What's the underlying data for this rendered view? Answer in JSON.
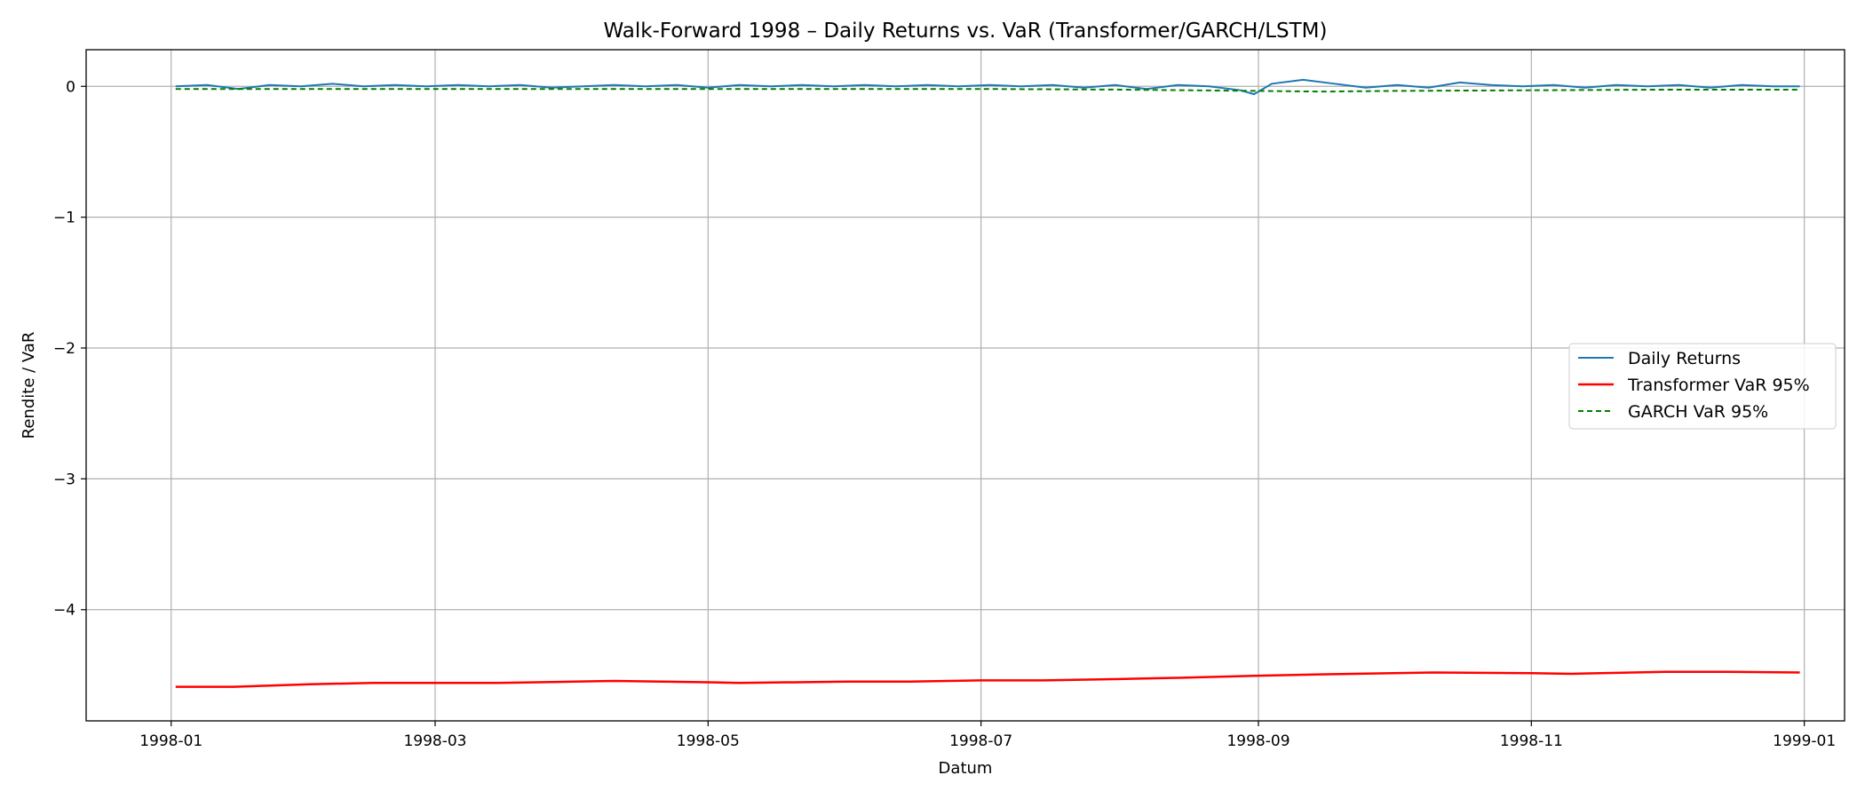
{
  "chart_data": {
    "type": "line",
    "title": "Walk-Forward 1998 – Daily Returns vs. VaR (Transformer/GARCH/LSTM)",
    "xlabel": "Datum",
    "ylabel": "Rendite / VaR",
    "x_ticks": [
      "1998-01",
      "1998-03",
      "1998-05",
      "1998-07",
      "1998-09",
      "1998-11",
      "1999-01"
    ],
    "y_ticks": [
      0,
      -1,
      -2,
      -3,
      -4
    ],
    "y_tick_labels": [
      "0",
      "−1",
      "−2",
      "−3",
      "−4"
    ],
    "xlim": [
      "1997-12-13",
      "1999-01-10"
    ],
    "ylim": [
      -4.85,
      0.28
    ],
    "grid": true,
    "legend": "center-right",
    "series": [
      {
        "name": "Daily Returns",
        "color": "#1f77b4",
        "style": "solid",
        "x": [
          "1998-01-02",
          "1998-01-09",
          "1998-01-16",
          "1998-01-23",
          "1998-01-30",
          "1998-02-06",
          "1998-02-13",
          "1998-02-20",
          "1998-02-27",
          "1998-03-06",
          "1998-03-13",
          "1998-03-20",
          "1998-03-27",
          "1998-04-03",
          "1998-04-10",
          "1998-04-17",
          "1998-04-24",
          "1998-05-01",
          "1998-05-08",
          "1998-05-15",
          "1998-05-22",
          "1998-05-29",
          "1998-06-05",
          "1998-06-12",
          "1998-06-19",
          "1998-06-26",
          "1998-07-03",
          "1998-07-10",
          "1998-07-17",
          "1998-07-24",
          "1998-07-31",
          "1998-08-07",
          "1998-08-14",
          "1998-08-21",
          "1998-08-28",
          "1998-08-31",
          "1998-09-04",
          "1998-09-11",
          "1998-09-18",
          "1998-09-25",
          "1998-10-02",
          "1998-10-09",
          "1998-10-16",
          "1998-10-23",
          "1998-10-30",
          "1998-11-06",
          "1998-11-13",
          "1998-11-20",
          "1998-11-27",
          "1998-12-04",
          "1998-12-11",
          "1998-12-18",
          "1998-12-25",
          "1998-12-31"
        ],
        "values": [
          0.0,
          0.01,
          -0.02,
          0.01,
          0.0,
          0.02,
          0.0,
          0.01,
          0.0,
          0.01,
          0.0,
          0.01,
          -0.01,
          0.0,
          0.01,
          0.0,
          0.01,
          -0.01,
          0.01,
          0.0,
          0.01,
          0.0,
          0.01,
          0.0,
          0.01,
          0.0,
          0.01,
          0.0,
          0.01,
          -0.01,
          0.01,
          -0.02,
          0.01,
          0.0,
          -0.03,
          -0.06,
          0.02,
          0.05,
          0.02,
          -0.01,
          0.01,
          -0.01,
          0.03,
          0.01,
          0.0,
          0.01,
          -0.01,
          0.01,
          0.0,
          0.01,
          -0.01,
          0.01,
          0.0,
          0.0
        ]
      },
      {
        "name": "Transformer VaR 95%",
        "color": "#ff0000",
        "style": "solid",
        "x": [
          "1998-01-02",
          "1998-01-15",
          "1998-02-01",
          "1998-02-15",
          "1998-03-01",
          "1998-03-15",
          "1998-04-01",
          "1998-04-10",
          "1998-05-01",
          "1998-05-08",
          "1998-06-01",
          "1998-06-15",
          "1998-07-01",
          "1998-07-15",
          "1998-08-01",
          "1998-08-15",
          "1998-09-01",
          "1998-09-15",
          "1998-10-01",
          "1998-10-10",
          "1998-11-01",
          "1998-11-10",
          "1998-12-01",
          "1998-12-15",
          "1998-12-31"
        ],
        "values": [
          -4.59,
          -4.59,
          -4.57,
          -4.56,
          -4.56,
          -4.56,
          -4.55,
          -4.545,
          -4.555,
          -4.56,
          -4.55,
          -4.55,
          -4.54,
          -4.54,
          -4.53,
          -4.52,
          -4.505,
          -4.495,
          -4.485,
          -4.48,
          -4.485,
          -4.49,
          -4.475,
          -4.475,
          -4.48
        ]
      },
      {
        "name": "GARCH VaR 95%",
        "color": "#008000",
        "style": "dashed",
        "x": [
          "1998-01-02",
          "1998-02-01",
          "1998-03-01",
          "1998-04-01",
          "1998-05-01",
          "1998-06-01",
          "1998-07-01",
          "1998-08-01",
          "1998-09-01",
          "1998-09-15",
          "1998-10-01",
          "1998-11-01",
          "1998-12-01",
          "1998-12-31"
        ],
        "values": [
          -0.02,
          -0.02,
          -0.02,
          -0.02,
          -0.02,
          -0.02,
          -0.02,
          -0.025,
          -0.035,
          -0.04,
          -0.035,
          -0.03,
          -0.025,
          -0.025
        ]
      }
    ]
  }
}
